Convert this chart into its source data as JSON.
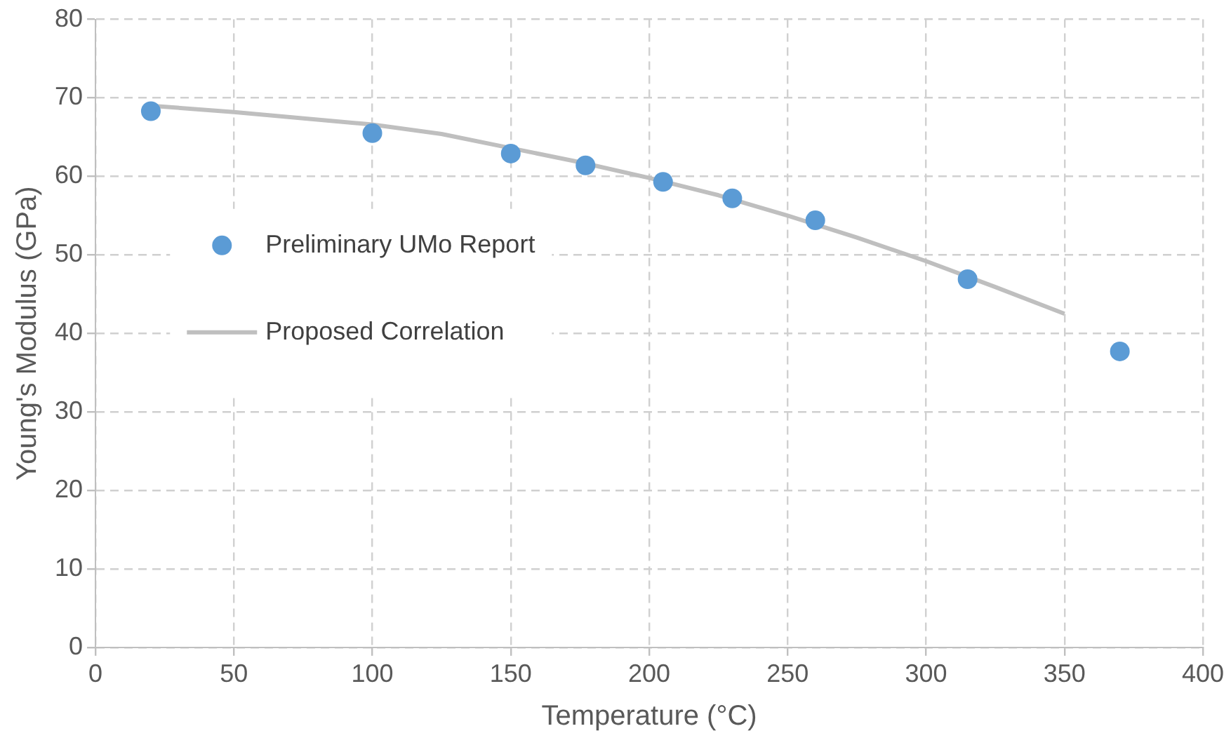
{
  "chart_data": {
    "type": "scatter",
    "xlabel": "Temperature (°C)",
    "ylabel": "Young's Modulus (GPa)",
    "xlim": [
      0,
      400
    ],
    "xticks": [
      0,
      50,
      100,
      150,
      200,
      250,
      300,
      350,
      400
    ],
    "ylim": [
      0,
      80
    ],
    "yticks": [
      0,
      10,
      20,
      30,
      40,
      50,
      60,
      70,
      80
    ],
    "grid": true,
    "legend": "left",
    "marker": "circle",
    "series": [
      {
        "name": "Preliminary UMo Report",
        "color": "#5b9bd5",
        "x": [
          20,
          100,
          150,
          177,
          205,
          230,
          260,
          315,
          370
        ],
        "values": [
          68.3,
          65.5,
          62.9,
          61.4,
          59.3,
          57.2,
          54.4,
          46.9,
          37.7
        ]
      },
      {
        "name": "Proposed Correlation",
        "type": "line",
        "color": "#bfbfbf",
        "marker": "none",
        "x": [
          20,
          50,
          100,
          125,
          150,
          175,
          200,
          225,
          250,
          275,
          300,
          325,
          350
        ],
        "values": [
          69.0,
          68.2,
          66.6,
          65.4,
          63.6,
          61.8,
          59.8,
          57.6,
          55.0,
          52.2,
          49.2,
          45.9,
          42.5
        ]
      }
    ]
  }
}
